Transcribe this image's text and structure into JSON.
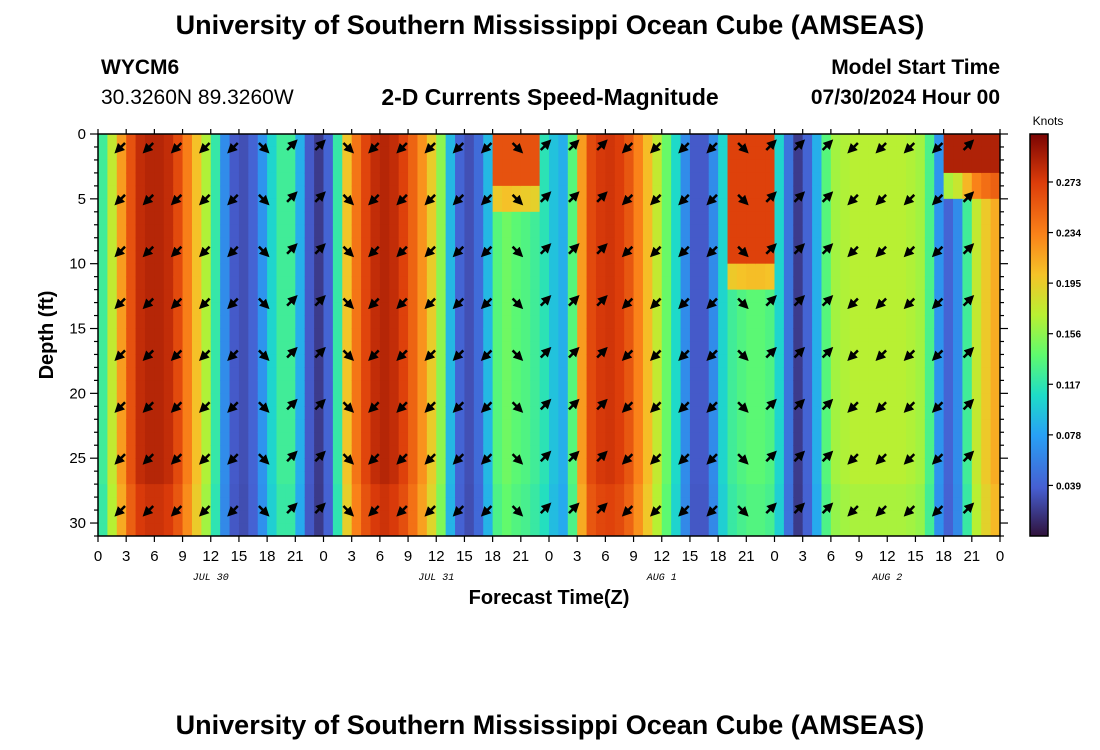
{
  "page": {
    "title_top": "University of Southern Mississippi Ocean Cube (AMSEAS)",
    "title_bottom": "University of Southern Mississippi Ocean Cube (AMSEAS)",
    "station_id": "WYCM6",
    "station_coords": "30.3260N  89.3260W",
    "model_start_label": "Model Start Time",
    "model_start_value": "07/30/2024 Hour 00"
  },
  "chart_data": {
    "type": "heatmap",
    "title": "2-D Currents Speed-Magnitude",
    "xlabel": "Forecast Time(Z)",
    "ylabel": "Depth (ft)",
    "colorbar_label": "Knots",
    "x_range": [
      0,
      96
    ],
    "y_range": [
      0,
      31
    ],
    "x_tick_labels": [
      "0",
      "3",
      "6",
      "9",
      "12",
      "15",
      "18",
      "21",
      "0",
      "3",
      "6",
      "9",
      "12",
      "15",
      "18",
      "21",
      "0",
      "3",
      "6",
      "9",
      "12",
      "15",
      "18",
      "21",
      "0",
      "3",
      "6",
      "9",
      "12",
      "15",
      "18",
      "21",
      "0"
    ],
    "y_ticks": [
      0,
      5,
      10,
      15,
      20,
      25,
      30
    ],
    "date_labels": [
      {
        "label": "JUL 30",
        "hour": 12
      },
      {
        "label": "JUL 31",
        "hour": 36
      },
      {
        "label": "AUG 1",
        "hour": 60
      },
      {
        "label": "AUG 2",
        "hour": 84
      }
    ],
    "colorbar_ticks": [
      0.039,
      0.078,
      0.117,
      0.156,
      0.195,
      0.234,
      0.273
    ],
    "colorbar_range": [
      0.0,
      0.31
    ],
    "speed_profile": {
      "hours": [
        0,
        2,
        4,
        6,
        8,
        10,
        12,
        13,
        14,
        15,
        16,
        17,
        18,
        19,
        20,
        21,
        22,
        23,
        24,
        25,
        26,
        28,
        30,
        32,
        34,
        36,
        37,
        38,
        39,
        40,
        41,
        42,
        43,
        44,
        46,
        48,
        49,
        50,
        51,
        52,
        54,
        56,
        58,
        60,
        62,
        63,
        64,
        65,
        66,
        67,
        68,
        70,
        72,
        73,
        74,
        75,
        76,
        78,
        80,
        82,
        84,
        86,
        88,
        89,
        90,
        91,
        92,
        93,
        94,
        96
      ],
      "speeds": [
        0.1,
        0.2,
        0.28,
        0.29,
        0.28,
        0.22,
        0.15,
        0.09,
        0.04,
        0.03,
        0.03,
        0.05,
        0.09,
        0.12,
        0.13,
        0.12,
        0.05,
        0.02,
        0.02,
        0.06,
        0.18,
        0.26,
        0.29,
        0.28,
        0.24,
        0.18,
        0.13,
        0.05,
        0.03,
        0.03,
        0.06,
        0.12,
        0.15,
        0.14,
        0.13,
        0.11,
        0.08,
        0.09,
        0.18,
        0.26,
        0.28,
        0.27,
        0.22,
        0.16,
        0.09,
        0.04,
        0.03,
        0.04,
        0.09,
        0.12,
        0.13,
        0.14,
        0.13,
        0.08,
        0.02,
        0.02,
        0.06,
        0.16,
        0.17,
        0.17,
        0.17,
        0.17,
        0.16,
        0.1,
        0.04,
        0.04,
        0.09,
        0.16,
        0.19,
        0.22
      ]
    },
    "surface_features": [
      {
        "hours": [
          42,
          47
        ],
        "depth_to": 3.5,
        "speed": 0.26
      },
      {
        "hours": [
          67,
          72
        ],
        "depth_to": 9.5,
        "speed": 0.27
      },
      {
        "hours": [
          90,
          96
        ],
        "depth_to": 3.0,
        "speed": 0.29
      }
    ],
    "arrow_depths": [
      0.5,
      4.5,
      8.5,
      12.5,
      16.5,
      20.5,
      24.5,
      28.5
    ],
    "arrow_hours": [
      2.5,
      5.5,
      8.5,
      11.5,
      14.5,
      17.5,
      20.5,
      23.5,
      26.5,
      29.5,
      32.5,
      35.5,
      38.5,
      41.5,
      44.5,
      47.5,
      50.5,
      53.5,
      56.5,
      59.5,
      62.5,
      65.5,
      68.5,
      71.5,
      74.5,
      77.5,
      80.5,
      83.5,
      86.5,
      89.5,
      92.5
    ],
    "arrow_directions_deg": [
      225,
      225,
      225,
      225,
      225,
      135,
      45,
      45,
      135,
      225,
      225,
      225,
      225,
      225,
      135,
      45,
      45,
      45,
      225,
      225,
      225,
      225,
      135,
      45,
      45,
      45,
      225,
      225,
      225,
      225,
      45
    ]
  }
}
